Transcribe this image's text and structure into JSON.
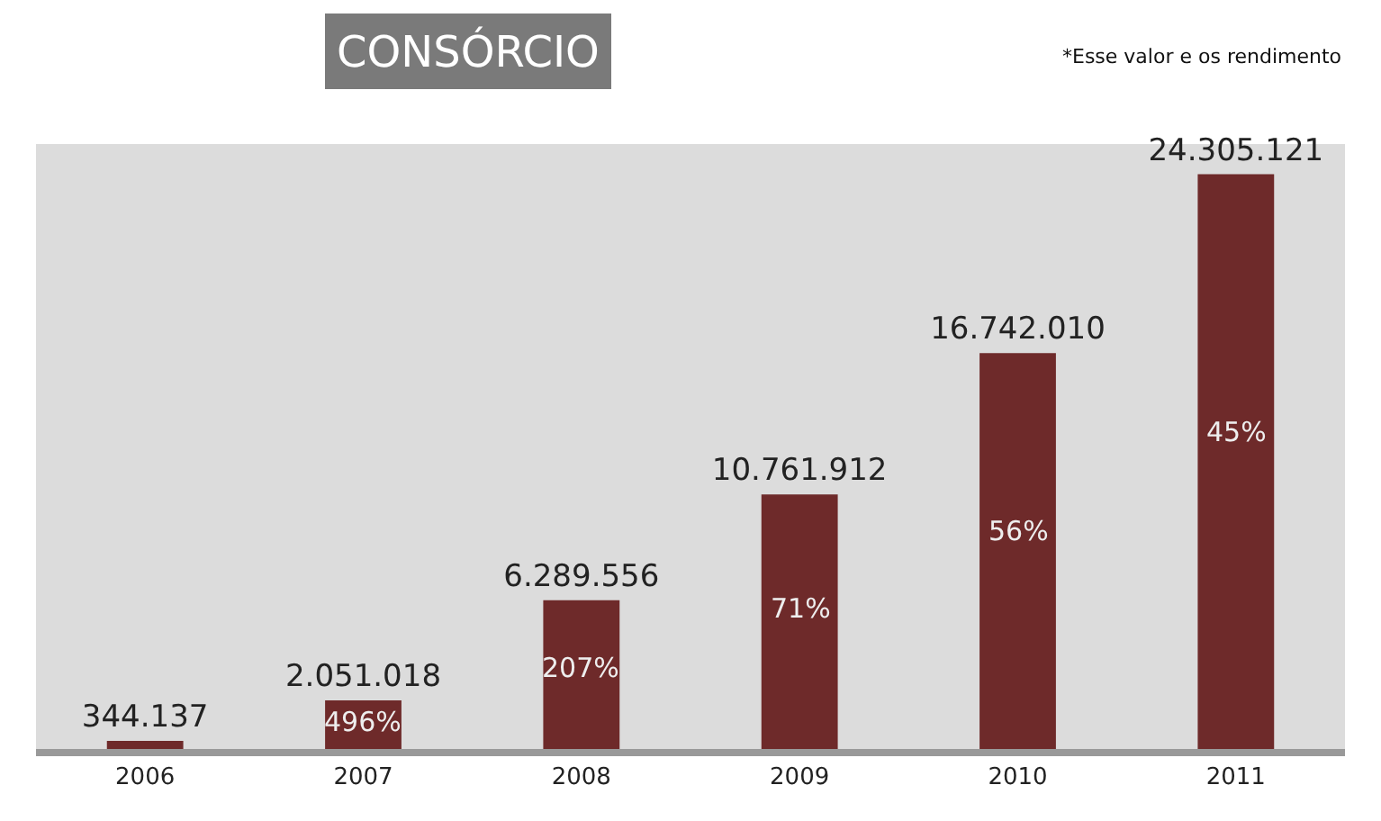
{
  "chart_data": {
    "type": "bar",
    "title": "CONSÓRCIO",
    "categories": [
      "2006",
      "2007",
      "2008",
      "2009",
      "2010",
      "2011"
    ],
    "values": [
      344137,
      2051018,
      6289556,
      10761912,
      16742010,
      24305121
    ],
    "value_labels": [
      "344.137",
      "2.051.018",
      "6.289.556",
      "10.761.912",
      "16.742.010",
      "24.305.121"
    ],
    "color": "#6e2a2a",
    "annotations": [
      {
        "text": "*Esse valor e os rendimento"
      },
      "496%",
      "207%",
      "71%",
      "56%",
      "45%"
    ]
  }
}
